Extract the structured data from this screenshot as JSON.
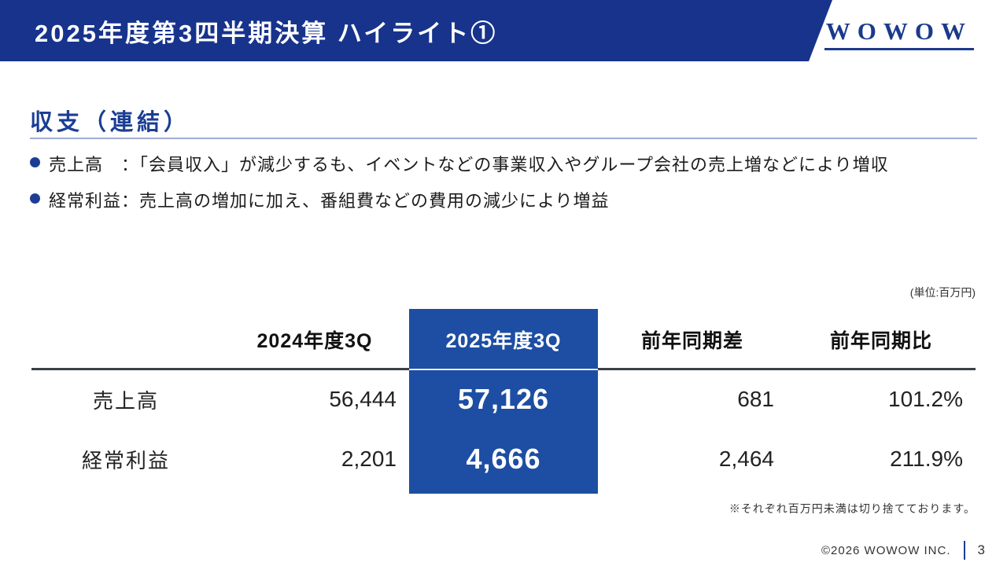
{
  "header": {
    "title": "2025年度第3四半期決算 ハイライト①",
    "logo": "WOWOW",
    "bar_color": "#17338c"
  },
  "section": {
    "heading": "収支（連結）",
    "bullets": [
      "売上高　：「会員収入」が減少するも、イベントなどの事業収入やグループ会社の売上増などにより増収",
      "経常利益：売上高の増加に加え、番組費などの費用の減少により増益"
    ]
  },
  "table": {
    "unit_note": "(単位:百万円)",
    "columns": [
      "",
      "2024年度3Q",
      "2025年度3Q",
      "前年同期差",
      "前年同期比"
    ],
    "highlight_column": "2025年度3Q",
    "highlight_color": "#1d4ea3",
    "rows": [
      {
        "label": "売上高",
        "prev": "56,444",
        "current": "57,126",
        "diff": "681",
        "ratio": "101.2%"
      },
      {
        "label": "経常利益",
        "prev": "2,201",
        "current": "4,666",
        "diff": "2,464",
        "ratio": "211.9%"
      }
    ],
    "footnote": "※それぞれ百万円未満は切り捨てております。"
  },
  "footer": {
    "copyright": "©2026 WOWOW INC.",
    "page_number": "3"
  }
}
